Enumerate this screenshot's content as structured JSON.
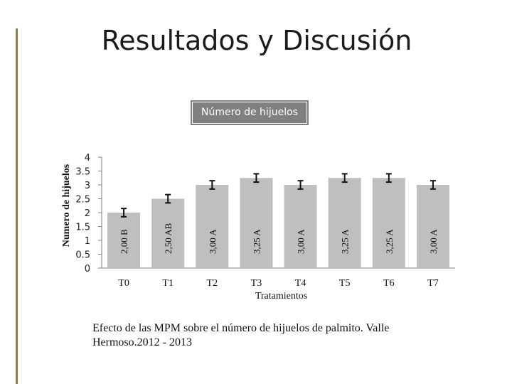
{
  "page": {
    "title": "Resultados y Discusión"
  },
  "caption": "Efecto de las MPM sobre el número de hijuelos de palmito. Valle Hermoso.2012 - 2013",
  "colors": {
    "accent": "#8d8653",
    "bar": "#bfbfbf",
    "title_box": "#808080"
  },
  "chart_data": {
    "type": "bar",
    "title": "Número de hijuelos",
    "xlabel": "Tratamientos",
    "ylabel": "Numero de hijuelos",
    "categories": [
      "T0",
      "T1",
      "T2",
      "T3",
      "T4",
      "T5",
      "T6",
      "T7"
    ],
    "values": [
      2.0,
      2.5,
      3.0,
      3.25,
      3.0,
      3.25,
      3.25,
      3.0
    ],
    "error": [
      0.15,
      0.15,
      0.15,
      0.15,
      0.15,
      0.15,
      0.15,
      0.15
    ],
    "data_labels": [
      "2,00 B",
      "2,50  AB",
      "3,00  A",
      "3,25 A",
      "3,00  A",
      "3,25 A",
      "3,25 A",
      "3,00 A"
    ],
    "ylim": [
      0,
      4
    ],
    "yticks": [
      "0",
      "0.5",
      "1",
      "1.5",
      "2",
      "2.5",
      "3",
      "3.5",
      "4"
    ],
    "grid": false,
    "legend": "none"
  }
}
